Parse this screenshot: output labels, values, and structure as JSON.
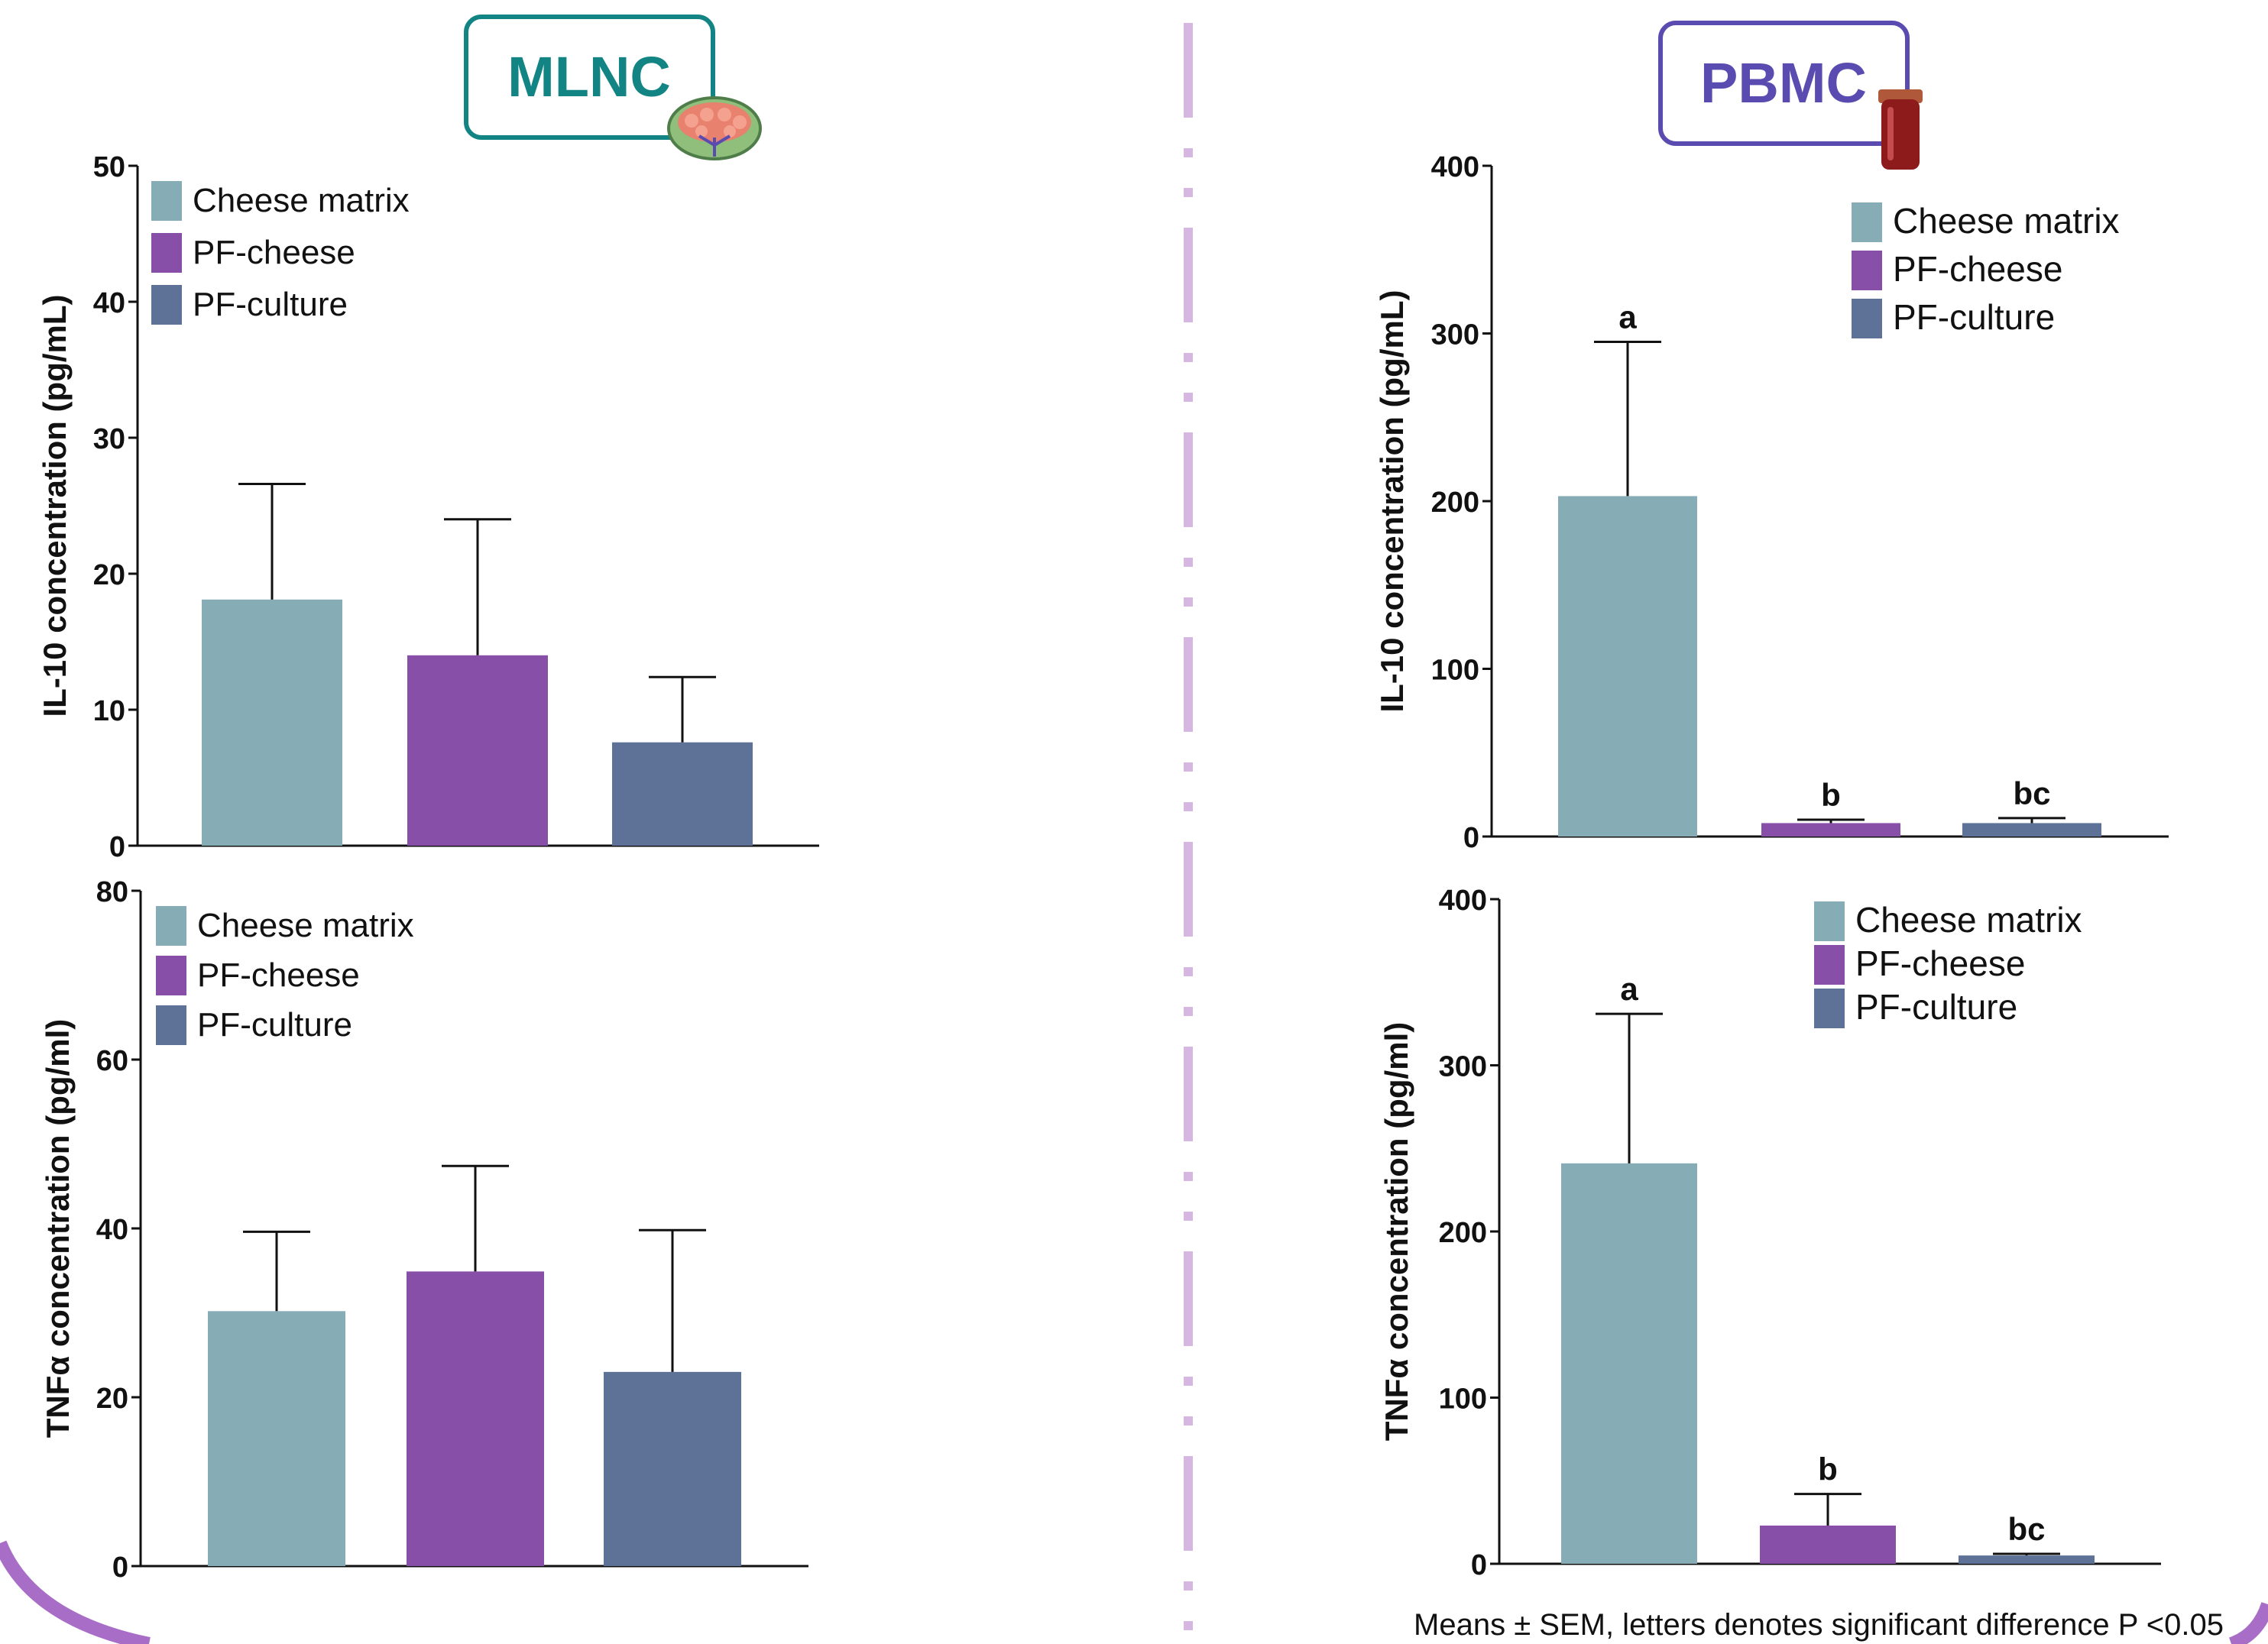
{
  "colors": {
    "cheese_matrix": "#86ADB5",
    "pf_cheese": "#874FA8",
    "pf_culture": "#5E7297",
    "mlnc_accent": "#138484",
    "pbmc_accent": "#5A4BB0",
    "divider": "#D6B7E1",
    "corner_arc": "#A86DC6",
    "axis": "#111111"
  },
  "headers": {
    "mlnc": "MLNC",
    "pbmc": "PBMC",
    "mlnc_icon": "lymph-node-icon",
    "pbmc_icon": "blood-tube-icon"
  },
  "footnote": "Means ± SEM, letters denotes significant difference P <0.05",
  "chart_data": [
    {
      "type": "bar",
      "id": "mlnc-il10",
      "group": "MLNC",
      "ylabel": "IL-10 concentration (pg/mL)",
      "ylim": [
        0,
        50
      ],
      "yticks": [
        0,
        10,
        20,
        30,
        40,
        50
      ],
      "legend_position": "top-left",
      "legend": [
        "Cheese matrix",
        "PF-cheese",
        "PF-culture"
      ],
      "categories": [
        "Cheese matrix",
        "PF-cheese",
        "PF-culture"
      ],
      "values": [
        18.1,
        14.0,
        7.6
      ],
      "errors": [
        8.5,
        10.0,
        4.8
      ],
      "letters": [
        "",
        "",
        ""
      ]
    },
    {
      "type": "bar",
      "id": "mlnc-tnfa",
      "group": "MLNC",
      "ylabel": "TNFα concentration (pg/ml)",
      "ylim": [
        0,
        80
      ],
      "yticks": [
        0,
        20,
        40,
        60,
        80
      ],
      "legend_position": "top-left",
      "legend": [
        "Cheese matrix",
        "PF-cheese",
        "PF-culture"
      ],
      "categories": [
        "Cheese matrix",
        "PF-cheese",
        "PF-culture"
      ],
      "values": [
        30.2,
        34.9,
        23.0
      ],
      "errors": [
        9.4,
        12.5,
        16.8
      ],
      "letters": [
        "",
        "",
        ""
      ]
    },
    {
      "type": "bar",
      "id": "pbmc-il10",
      "group": "PBMC",
      "ylabel": "IL-10 concentration (pg/mL)",
      "ylim": [
        0,
        400
      ],
      "yticks": [
        0,
        100,
        200,
        300,
        400
      ],
      "legend_position": "top-right",
      "legend": [
        "Cheese matrix",
        "PF-cheese",
        "PF-culture"
      ],
      "categories": [
        "Cheese matrix",
        "PF-cheese",
        "PF-culture"
      ],
      "values": [
        203,
        8,
        8
      ],
      "errors": [
        92,
        2,
        3
      ],
      "letters": [
        "a",
        "b",
        "bc"
      ]
    },
    {
      "type": "bar",
      "id": "pbmc-tnfa",
      "group": "PBMC",
      "ylabel": "TNFα concentration (pg/ml)",
      "ylim": [
        0,
        400
      ],
      "yticks": [
        0,
        100,
        200,
        300,
        400
      ],
      "legend_position": "top-right",
      "legend": [
        "Cheese matrix",
        "PF-cheese",
        "PF-culture"
      ],
      "categories": [
        "Cheese matrix",
        "PF-cheese",
        "PF-culture"
      ],
      "values": [
        241,
        23,
        5
      ],
      "errors": [
        90,
        19,
        1
      ],
      "letters": [
        "a",
        "b",
        "bc"
      ]
    }
  ]
}
